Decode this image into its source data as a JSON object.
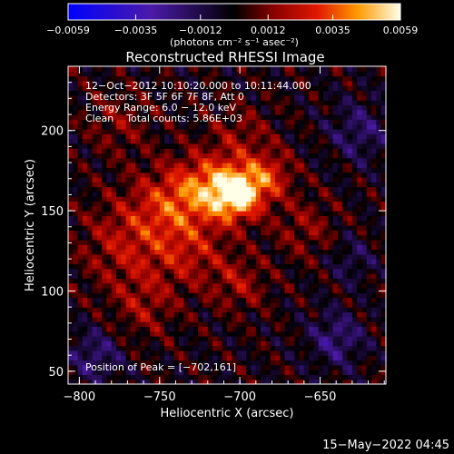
{
  "chart_data": {
    "type": "heatmap",
    "title": "Reconstructed RHESSI Image",
    "xlabel": "Heliocentric X (arcsec)",
    "ylabel": "Heliocentric Y (arcsec)",
    "xlim": [
      -807,
      -609
    ],
    "ylim": [
      42,
      240
    ],
    "x_ticks": [
      -800,
      -750,
      -700,
      -650
    ],
    "x_tick_labels": [
      "−800",
      "−750",
      "−700",
      "−650"
    ],
    "y_ticks": [
      50,
      100,
      150,
      200
    ],
    "y_tick_labels": [
      "50",
      "100",
      "150",
      "200"
    ],
    "colorbar": {
      "range": [
        -0.0059,
        0.0059
      ],
      "ticks": [
        -0.0059,
        -0.0035,
        -0.0012,
        0.0012,
        0.0035,
        0.0059
      ],
      "tick_labels": [
        "−0.0059",
        "−0.0035",
        "−0.0012",
        "0.0012",
        "0.0035",
        "0.0059"
      ],
      "units": "(photons cm⁻² s⁻¹ asec⁻²)"
    },
    "info_lines": [
      "12−Oct−2012 10:10:20.000 to 10:11:44.000",
      "Detectors: 3F 5F 6F 7F 8F, Att 0",
      "Energy Range: 6.0 − 12.0 keV",
      "Clean    Total counts: 5.86E+03"
    ],
    "peak_label": "Position of Peak = [−702,161]",
    "peak": [
      -702,
      161
    ],
    "sources": [
      {
        "x": -702,
        "y": 161,
        "sigma": 11,
        "amp": 0.0059
      },
      {
        "x": -722,
        "y": 165,
        "sigma": 14,
        "amp": 0.003
      },
      {
        "x": -682,
        "y": 172,
        "sigma": 10,
        "amp": 0.0026
      },
      {
        "x": -745,
        "y": 155,
        "sigma": 16,
        "amp": 0.0022
      },
      {
        "x": -770,
        "y": 130,
        "sigma": 20,
        "amp": 0.002
      },
      {
        "x": -730,
        "y": 125,
        "sigma": 16,
        "amp": 0.0018
      },
      {
        "x": -700,
        "y": 105,
        "sigma": 12,
        "amp": 0.0016
      },
      {
        "x": -760,
        "y": 90,
        "sigma": 14,
        "amp": 0.0014
      },
      {
        "x": -660,
        "y": 140,
        "sigma": 14,
        "amp": 0.0013
      },
      {
        "x": -700,
        "y": 195,
        "sigma": 14,
        "amp": 0.0014
      },
      {
        "x": -775,
        "y": 205,
        "sigma": 14,
        "amp": 0.0012
      },
      {
        "x": -640,
        "y": 70,
        "sigma": 12,
        "amp": -0.002
      },
      {
        "x": -790,
        "y": 60,
        "sigma": 12,
        "amp": -0.0018
      },
      {
        "x": -625,
        "y": 200,
        "sigma": 14,
        "amp": -0.0016
      },
      {
        "x": -630,
        "y": 120,
        "sigma": 10,
        "amp": -0.0012
      }
    ]
  },
  "footer": {
    "timestamp": "15−May−2022 04:45"
  }
}
